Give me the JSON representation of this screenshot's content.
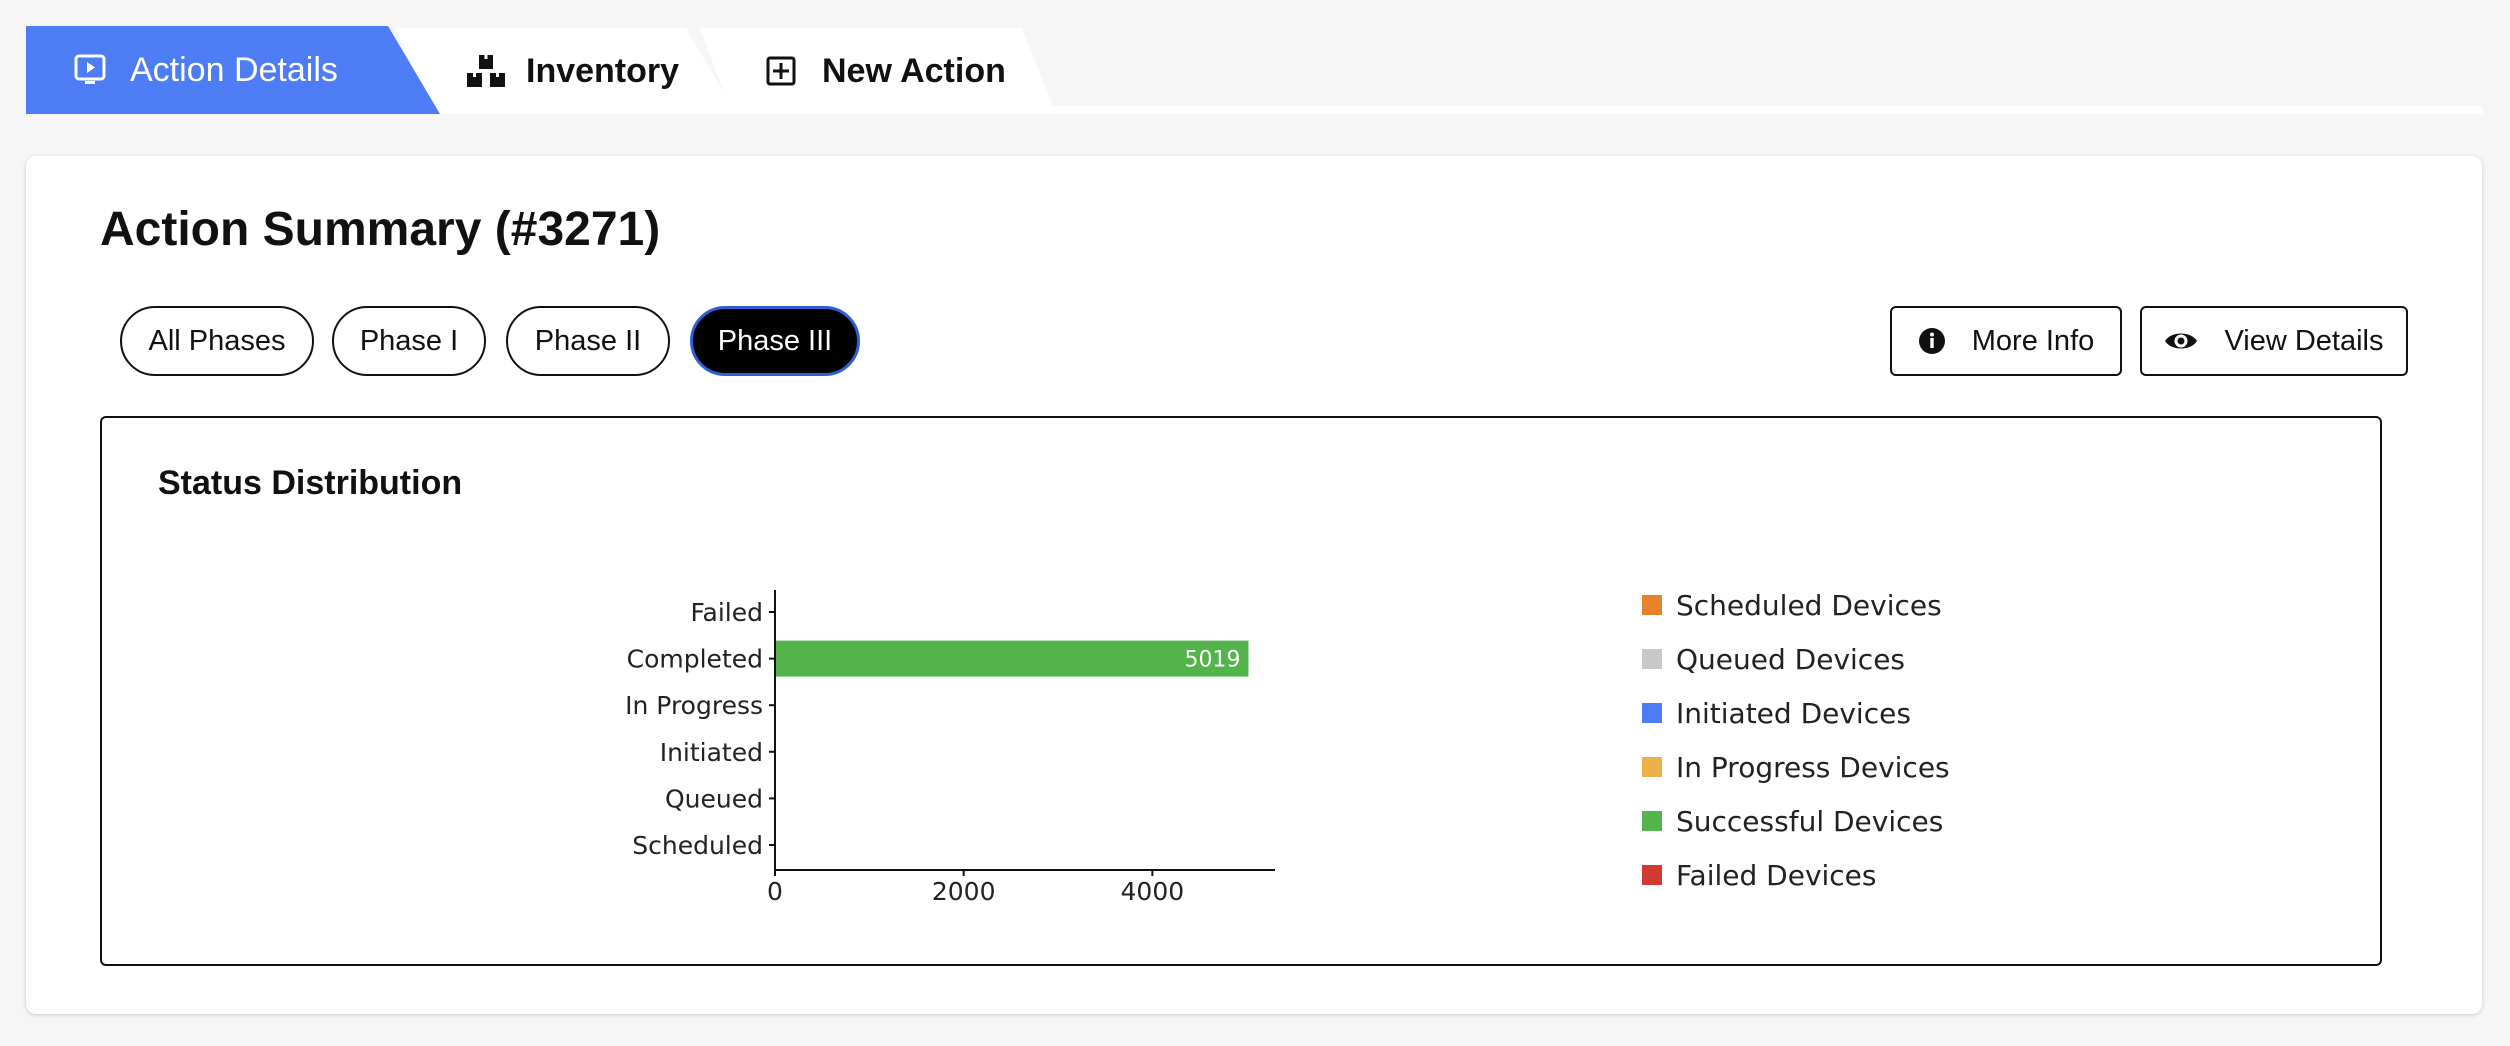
{
  "tabs": [
    {
      "label": "Action Details",
      "icon": "play-screen-icon",
      "active": true
    },
    {
      "label": "Inventory",
      "icon": "boxes-icon",
      "active": false
    },
    {
      "label": "New Action",
      "icon": "plus-square-icon",
      "active": false
    }
  ],
  "page": {
    "title": "Action Summary (#3271)"
  },
  "phases": [
    {
      "label": "All Phases",
      "active": false
    },
    {
      "label": "Phase I",
      "active": false
    },
    {
      "label": "Phase II",
      "active": false
    },
    {
      "label": "Phase III",
      "active": true
    }
  ],
  "buttons": {
    "more_info": {
      "label": "More Info",
      "icon": "info-circle-icon"
    },
    "view_details": {
      "label": "View Details",
      "icon": "eye-icon"
    }
  },
  "panel": {
    "title": "Status Distribution"
  },
  "colors": {
    "accent": "#4d7cf5",
    "scheduled": "#e8822a",
    "queued": "#c8c8c8",
    "initiated": "#4d7cf5",
    "in_progress": "#edb04a",
    "successful": "#52b44a",
    "failed": "#cf3b32"
  },
  "legend": [
    {
      "label": "Scheduled Devices",
      "color": "#e8822a"
    },
    {
      "label": "Queued Devices",
      "color": "#c8c8c8"
    },
    {
      "label": "Initiated Devices",
      "color": "#4d7cf5"
    },
    {
      "label": "In Progress Devices",
      "color": "#edb04a"
    },
    {
      "label": "Successful Devices",
      "color": "#52b44a"
    },
    {
      "label": "Failed Devices",
      "color": "#cf3b32"
    }
  ],
  "chart_data": {
    "type": "bar",
    "orientation": "horizontal",
    "categories": [
      "Scheduled",
      "Queued",
      "Initiated",
      "In Progress",
      "Completed",
      "Failed"
    ],
    "values": [
      0,
      0,
      0,
      0,
      5019,
      0
    ],
    "colors": [
      "#e8822a",
      "#c8c8c8",
      "#4d7cf5",
      "#edb04a",
      "#52b44a",
      "#cf3b32"
    ],
    "data_labels": [
      "",
      "",
      "",
      "",
      "5019",
      ""
    ],
    "xlim": [
      0,
      5300
    ],
    "xticks": [
      0,
      2000,
      4000
    ],
    "grid": false,
    "legend_position": "right"
  }
}
